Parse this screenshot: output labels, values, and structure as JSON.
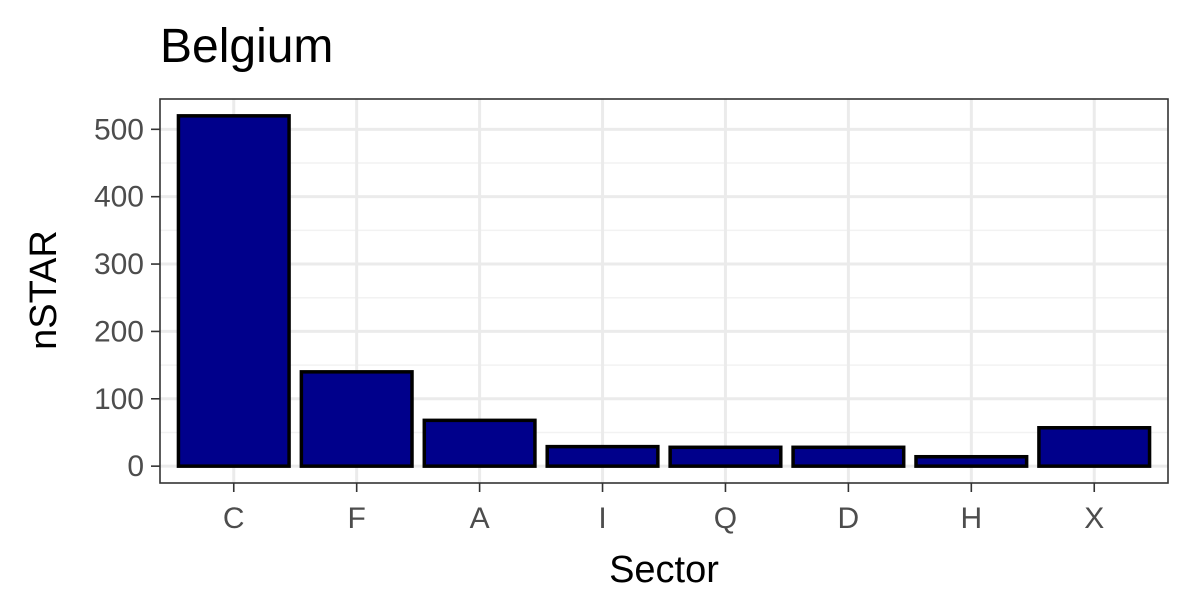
{
  "chart_data": {
    "type": "bar",
    "title": "Belgium",
    "xlabel": "Sector",
    "ylabel": "nSTAR",
    "categories": [
      "C",
      "F",
      "A",
      "I",
      "Q",
      "D",
      "H",
      "X"
    ],
    "values": [
      520,
      140,
      68,
      29,
      28,
      28,
      14,
      57
    ],
    "ylim": [
      -25,
      545
    ],
    "yticks": [
      0,
      100,
      200,
      300,
      400,
      500
    ],
    "ytick_labels": [
      "0",
      "100",
      "200",
      "300",
      "400",
      "500"
    ],
    "grid": true,
    "legend": "none",
    "colors": {
      "bar_fill": "#00008B",
      "bar_outline": "#000000",
      "grid_major": "#EBEBEB",
      "grid_minor": "#F2F2F2",
      "panel_border": "#333333",
      "tick_text": "#4D4D4D"
    }
  }
}
